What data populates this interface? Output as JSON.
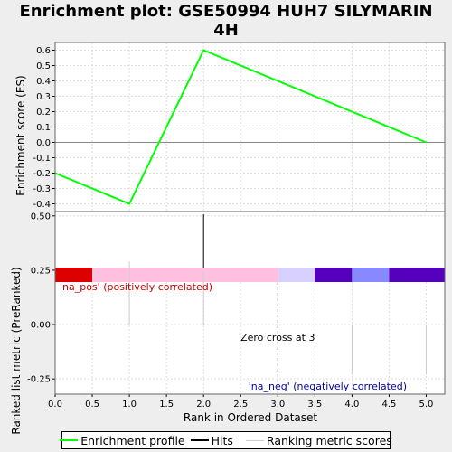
{
  "chart_data": {
    "type": "line",
    "title_lines": [
      "Enrichment plot: GSE50994 HUH7 SILYMARIN",
      "4H"
    ],
    "top_panel": {
      "ylabel": "Enrichment score (ES)",
      "ylim": [
        -0.45,
        0.65
      ],
      "yticks": [
        -0.4,
        -0.3,
        -0.2,
        -0.1,
        0.0,
        0.1,
        0.2,
        0.3,
        0.4,
        0.5,
        0.6
      ],
      "ytick_labels": [
        "-0.4",
        "-0.3",
        "-0.2",
        "-0.1",
        "0.0",
        "0.1",
        "0.2",
        "0.3",
        "0.4",
        "0.5",
        "0.6"
      ],
      "series": [
        {
          "name": "Enrichment profile",
          "color": "#00ff00",
          "x": [
            0,
            1,
            2,
            5
          ],
          "y": [
            -0.2,
            -0.4,
            0.6,
            0.0
          ]
        }
      ],
      "grid": true
    },
    "hits": {
      "color": "#000000",
      "x": [
        2
      ]
    },
    "rank_bar": {
      "segments": [
        {
          "from": 0.0,
          "to": 0.5,
          "color": "#dd0000"
        },
        {
          "from": 0.5,
          "to": 3.0,
          "color": "#ffc0e0"
        },
        {
          "from": 3.0,
          "to": 3.5,
          "color": "#d8d0ff"
        },
        {
          "from": 3.5,
          "to": 4.0,
          "color": "#5500bb"
        },
        {
          "from": 4.0,
          "to": 4.5,
          "color": "#8888ff"
        },
        {
          "from": 4.5,
          "to": 5.25,
          "color": "#5500bb"
        }
      ]
    },
    "bottom_panel": {
      "ylabel": "Ranked list metric (PreRanked)",
      "xlabel": "Rank in Ordered Dataset",
      "ylim": [
        -0.32,
        0.52
      ],
      "yticks": [
        0.5,
        0.25,
        0.0,
        -0.25
      ],
      "ytick_labels": [
        "0.50",
        "0.25",
        "0.00",
        "-0.25"
      ],
      "xlim": [
        0,
        5.25
      ],
      "xticks": [
        0,
        0.5,
        1,
        1.5,
        2,
        2.5,
        3,
        3.5,
        4,
        4.5,
        5
      ],
      "xtick_labels": [
        "0.0",
        "0.5",
        "1.0",
        "1.5",
        "2.0",
        "2.5",
        "3.0",
        "3.5",
        "4.0",
        "4.5",
        "5.0"
      ],
      "metric_x": [
        1,
        2,
        4,
        5
      ],
      "metric_y": [
        0.29,
        0.24,
        -0.23,
        -0.23
      ],
      "zero_cross_x": 3,
      "annotations": {
        "pos": "'na_pos' (positively correlated)",
        "neg": "'na_neg' (negatively correlated)",
        "zero_cross": "Zero cross at 3"
      },
      "pos_color": "#cc0000",
      "neg_color": "#0000aa"
    },
    "legend": [
      {
        "label": "Enrichment profile",
        "color": "#00ff00"
      },
      {
        "label": "Hits",
        "color": "#000000"
      },
      {
        "label": "Ranking metric scores",
        "color": "#cccccc"
      }
    ]
  }
}
